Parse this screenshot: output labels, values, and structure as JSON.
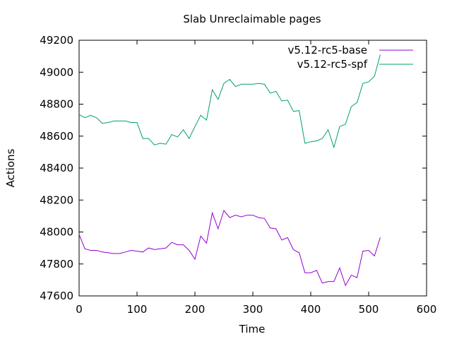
{
  "chart_data": {
    "type": "line",
    "title": "Slab Unreclaimable pages",
    "xlabel": "Time",
    "ylabel": "Actions",
    "xlim": [
      0,
      600
    ],
    "ylim": [
      47600,
      49200
    ],
    "x_ticks": [
      0,
      100,
      200,
      300,
      400,
      500,
      600
    ],
    "y_ticks": [
      47600,
      47800,
      48000,
      48200,
      48400,
      48600,
      48800,
      49000,
      49200
    ],
    "grid": false,
    "legend_position": "top-right",
    "series": [
      {
        "name": "v5.12-rc5-base",
        "color": "#9400d3",
        "x": [
          0,
          10,
          20,
          30,
          40,
          50,
          60,
          70,
          80,
          90,
          100,
          110,
          120,
          130,
          140,
          150,
          160,
          170,
          180,
          190,
          200,
          210,
          220,
          230,
          240,
          250,
          260,
          270,
          280,
          290,
          300,
          310,
          320,
          330,
          340,
          350,
          360,
          370,
          380,
          390,
          400,
          410,
          420,
          430,
          440,
          450,
          460,
          470,
          480,
          490,
          500,
          510,
          520
        ],
        "y": [
          47985,
          47895,
          47885,
          47885,
          47875,
          47870,
          47865,
          47865,
          47875,
          47885,
          47880,
          47875,
          47900,
          47890,
          47895,
          47900,
          47935,
          47920,
          47920,
          47885,
          47830,
          47975,
          47930,
          48120,
          48020,
          48135,
          48090,
          48105,
          48095,
          48105,
          48105,
          48090,
          48085,
          48025,
          48020,
          47950,
          47965,
          47890,
          47870,
          47745,
          47745,
          47760,
          47680,
          47690,
          47690,
          47775,
          47665,
          47730,
          47715,
          47880,
          47885,
          47850,
          47965
        ]
      },
      {
        "name": "v5.12-rc5-spf",
        "color": "#009e73",
        "x": [
          0,
          10,
          20,
          30,
          40,
          50,
          60,
          70,
          80,
          90,
          100,
          110,
          120,
          130,
          140,
          150,
          160,
          170,
          180,
          190,
          200,
          210,
          220,
          230,
          240,
          250,
          260,
          270,
          280,
          290,
          300,
          310,
          320,
          330,
          340,
          350,
          360,
          370,
          380,
          390,
          400,
          410,
          420,
          430,
          440,
          450,
          460,
          470,
          480,
          490,
          500,
          510,
          520
        ],
        "y": [
          48735,
          48715,
          48730,
          48715,
          48680,
          48685,
          48695,
          48695,
          48695,
          48685,
          48685,
          48585,
          48585,
          48545,
          48555,
          48550,
          48610,
          48595,
          48640,
          48585,
          48660,
          48730,
          48700,
          48890,
          48830,
          48930,
          48955,
          48910,
          48925,
          48925,
          48925,
          48930,
          48925,
          48870,
          48880,
          48820,
          48825,
          48755,
          48760,
          48555,
          48565,
          48570,
          48585,
          48640,
          48530,
          48660,
          48675,
          48785,
          48810,
          48930,
          48940,
          48975,
          49110
        ]
      }
    ]
  }
}
